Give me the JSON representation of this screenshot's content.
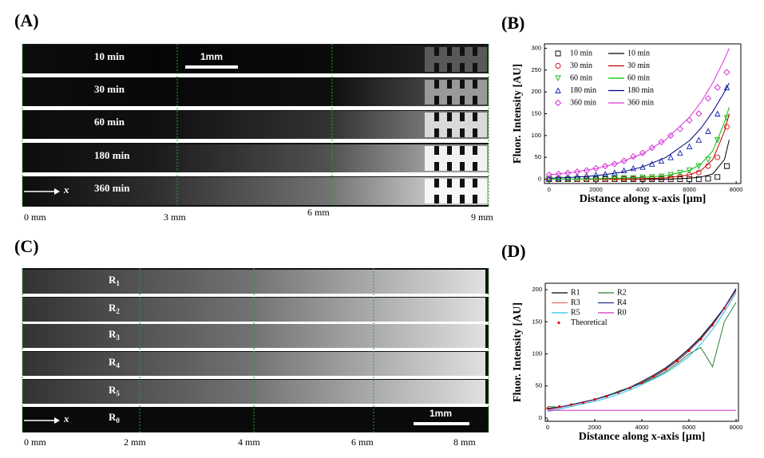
{
  "panels": {
    "a": {
      "label": "(A)",
      "strips": [
        "10 min",
        "30 min",
        "60 min",
        "180 min",
        "360 min"
      ],
      "scale_bar": "1mm",
      "axis_arrow": "x",
      "axis_labels": [
        "0 mm",
        "3 mm",
        "6 mm",
        "9 mm"
      ]
    },
    "c": {
      "label": "(C)",
      "strips": [
        {
          "base": "R",
          "sub": "1"
        },
        {
          "base": "R",
          "sub": "2"
        },
        {
          "base": "R",
          "sub": "3"
        },
        {
          "base": "R",
          "sub": "4"
        },
        {
          "base": "R",
          "sub": "5"
        },
        {
          "base": "R",
          "sub": "0"
        }
      ],
      "scale_bar": "1mm",
      "axis_arrow": "x",
      "axis_labels": [
        "0 mm",
        "2 mm",
        "4 mm",
        "6 mm",
        "8 mm"
      ]
    }
  },
  "chart_data": [
    {
      "type": "line",
      "label": "(B)",
      "xlabel": "Distance along x-axis [µm]",
      "ylabel": "Fluor. Intensity [AU]",
      "xlim": [
        -200,
        8200
      ],
      "ylim": [
        -10,
        310
      ],
      "xticks": [
        0,
        2000,
        4000,
        6000,
        8000
      ],
      "yticks": [
        0,
        50,
        100,
        150,
        200,
        250,
        300
      ],
      "legend": "upper left",
      "series": [
        {
          "name": "10 min",
          "color": "#000000",
          "marker": "square",
          "x": [
            0,
            400,
            800,
            1200,
            1600,
            2000,
            2400,
            2800,
            3200,
            3600,
            4000,
            4400,
            4800,
            5200,
            5600,
            6000,
            6400,
            6800,
            7200,
            7600
          ],
          "values": [
            0,
            0,
            0,
            0,
            0,
            0,
            0,
            0,
            0,
            0,
            0,
            0,
            0,
            0,
            0,
            0,
            0,
            1,
            5,
            30
          ]
        },
        {
          "name": "30 min",
          "color": "#d01010",
          "marker": "circle",
          "x": [
            0,
            400,
            800,
            1200,
            1600,
            2000,
            2400,
            2800,
            3200,
            3600,
            4000,
            4400,
            4800,
            5200,
            5600,
            6000,
            6400,
            6800,
            7200,
            7600
          ],
          "values": [
            0,
            0,
            0,
            0,
            0,
            0,
            0,
            0,
            1,
            1,
            1,
            2,
            3,
            4,
            6,
            10,
            15,
            30,
            50,
            120
          ]
        },
        {
          "name": "60 min",
          "color": "#10b010",
          "marker": "triangle-down",
          "x": [
            0,
            400,
            800,
            1200,
            1600,
            2000,
            2400,
            2800,
            3200,
            3600,
            4000,
            4400,
            4800,
            5200,
            5600,
            6000,
            6400,
            6800,
            7200,
            7600
          ],
          "values": [
            0,
            0,
            0,
            1,
            1,
            1,
            2,
            2,
            3,
            3,
            4,
            5,
            6,
            10,
            15,
            20,
            30,
            45,
            90,
            140
          ]
        },
        {
          "name": "180 min",
          "color": "#1020b0",
          "marker": "triangle-up",
          "x": [
            0,
            400,
            800,
            1200,
            1600,
            2000,
            2400,
            2800,
            3200,
            3600,
            4000,
            4400,
            4800,
            5200,
            5600,
            6000,
            6400,
            6800,
            7200,
            7600
          ],
          "values": [
            2,
            3,
            4,
            6,
            8,
            10,
            12,
            15,
            20,
            25,
            28,
            35,
            42,
            50,
            60,
            75,
            90,
            110,
            150,
            210
          ]
        },
        {
          "name": "360 min",
          "color": "#d020d0",
          "marker": "diamond",
          "x": [
            0,
            400,
            800,
            1200,
            1600,
            2000,
            2400,
            2800,
            3200,
            3600,
            4000,
            4400,
            4800,
            5200,
            5600,
            6000,
            6400,
            6800,
            7200,
            7600
          ],
          "values": [
            10,
            12,
            14,
            17,
            20,
            25,
            30,
            35,
            42,
            52,
            60,
            72,
            85,
            100,
            115,
            135,
            150,
            185,
            210,
            245
          ]
        },
        {
          "name": "10 min",
          "color": "#000000",
          "x": [
            0,
            1000,
            2000,
            3000,
            4000,
            5000,
            6000,
            6500,
            7000,
            7500,
            7700
          ],
          "values": [
            0,
            0,
            0,
            0,
            0,
            0,
            2,
            5,
            12,
            45,
            90
          ]
        },
        {
          "name": "30 min",
          "color": "#c00000",
          "x": [
            0,
            1000,
            2000,
            3000,
            4000,
            5000,
            6000,
            6500,
            7000,
            7500,
            7700
          ],
          "values": [
            0,
            0,
            0,
            0,
            1,
            3,
            10,
            20,
            45,
            110,
            150
          ]
        },
        {
          "name": "60 min",
          "color": "#00c000",
          "x": [
            0,
            1000,
            2000,
            3000,
            4000,
            5000,
            6000,
            6500,
            7000,
            7500,
            7700
          ],
          "values": [
            0,
            0,
            1,
            2,
            4,
            8,
            20,
            35,
            65,
            130,
            165
          ]
        },
        {
          "name": "180 min",
          "color": "#000080",
          "x": [
            0,
            1000,
            2000,
            3000,
            4000,
            5000,
            6000,
            6500,
            7000,
            7500,
            7700
          ],
          "values": [
            2,
            4,
            8,
            15,
            28,
            50,
            88,
            117,
            155,
            200,
            220
          ]
        },
        {
          "name": "360 min",
          "color": "#e030e0",
          "x": [
            0,
            1000,
            2000,
            3000,
            4000,
            5000,
            6000,
            6500,
            7000,
            7500,
            7700
          ],
          "values": [
            10,
            15.6,
            24.2,
            37.7,
            58.6,
            91,
            142,
            177,
            221,
            275,
            300
          ]
        }
      ]
    },
    {
      "type": "line",
      "label": "(D)",
      "xlabel": "Distance along x-axis [µm]",
      "ylabel": "Fluor. Intensity [AU]",
      "xlim": [
        -100,
        8100
      ],
      "ylim": [
        -5,
        210
      ],
      "xticks": [
        0,
        2000,
        4000,
        6000,
        8000
      ],
      "yticks": [
        0,
        50,
        100,
        150,
        200
      ],
      "legend": "upper left",
      "series": [
        {
          "name": "R1",
          "color": "#000000",
          "x": [
            0,
            500,
            1000,
            1500,
            2000,
            2500,
            3000,
            3500,
            4000,
            4500,
            5000,
            5500,
            6000,
            6500,
            7000,
            7500,
            8000
          ],
          "values": [
            15,
            17,
            21,
            25,
            29,
            35,
            41,
            48,
            57,
            67,
            78,
            92,
            108,
            126,
            148,
            172,
            200
          ]
        },
        {
          "name": "R2",
          "color": "#2e7d32",
          "x": [
            0,
            500,
            1000,
            1500,
            2000,
            2500,
            3000,
            3500,
            4000,
            4500,
            5000,
            5500,
            6000,
            6500,
            7000,
            7500,
            8000
          ],
          "values": [
            18,
            17,
            20,
            24,
            29,
            34,
            42,
            48,
            54,
            62,
            72,
            85,
            100,
            110,
            80,
            150,
            180
          ]
        },
        {
          "name": "R3",
          "color": "#e07070",
          "x": [
            0,
            500,
            1000,
            1500,
            2000,
            2500,
            3000,
            3500,
            4000,
            4500,
            5000,
            5500,
            6000,
            6500,
            7000,
            7500,
            8000
          ],
          "values": [
            12,
            16,
            20,
            24,
            28,
            34,
            40,
            47,
            55,
            64,
            75,
            88,
            104,
            122,
            144,
            170,
            198
          ]
        },
        {
          "name": "R4",
          "color": "#1f2f8f",
          "x": [
            0,
            500,
            1000,
            1500,
            2000,
            2500,
            3000,
            3500,
            4000,
            4500,
            5000,
            5500,
            6000,
            6500,
            7000,
            7500,
            8000
          ],
          "values": [
            14,
            17,
            21,
            25,
            29,
            34,
            40,
            47,
            55,
            65,
            76,
            90,
            106,
            124,
            146,
            172,
            202
          ]
        },
        {
          "name": "R5",
          "color": "#22c5e8",
          "x": [
            0,
            500,
            1000,
            1500,
            2000,
            2500,
            3000,
            3500,
            4000,
            4500,
            5000,
            5500,
            6000,
            6500,
            7000,
            7500,
            8000
          ],
          "values": [
            10,
            14,
            18,
            22,
            26,
            31,
            37,
            44,
            52,
            61,
            70,
            82,
            96,
            115,
            138,
            165,
            195
          ]
        },
        {
          "name": "R0",
          "color": "#cc33cc",
          "x": [
            0,
            500,
            1000,
            1500,
            2000,
            2500,
            3000,
            3500,
            4000,
            4500,
            5000,
            5500,
            6000,
            6500,
            7000,
            7500,
            8000
          ],
          "values": [
            12,
            12,
            12,
            12,
            12,
            12,
            12,
            12,
            12,
            12,
            12,
            12,
            12,
            12,
            12,
            12,
            12
          ]
        },
        {
          "name": "Theoretical",
          "color": "#e00000",
          "marker": "dot",
          "x": [
            0,
            500,
            1000,
            1500,
            2000,
            2500,
            3000,
            3500,
            4000,
            4500,
            5000,
            5500,
            6000,
            6500,
            7000,
            7500
          ],
          "values": [
            15,
            18,
            21,
            24,
            29,
            34,
            40,
            47,
            55,
            65,
            76,
            89,
            105,
            123,
            145,
            171
          ]
        }
      ]
    }
  ]
}
